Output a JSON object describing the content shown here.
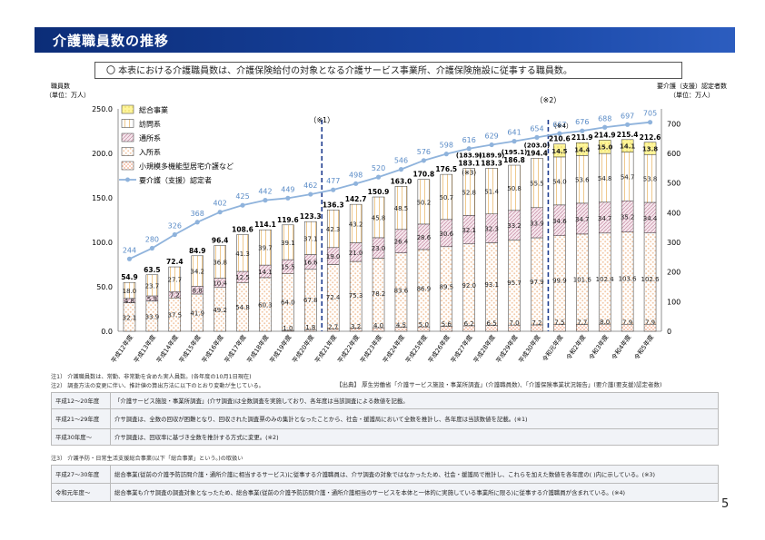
{
  "header": {
    "title": "介護職員数の推移"
  },
  "notice": "〇 本表における介護職員数は、介護保険給付の対象となる介護サービス事業所、介護保険施設に従事する職員数。",
  "chart_data": {
    "type": "bar",
    "left_axis_title": [
      "職員数",
      "（単位：万人）"
    ],
    "right_axis_title": [
      "要介護（支援）認定者数",
      "（単位：万人）"
    ],
    "left_ticks": [
      "0.0",
      "50.0",
      "100.0",
      "150.0",
      "200.0",
      "250.0"
    ],
    "right_ticks": [
      "0",
      "100",
      "200",
      "300",
      "400",
      "500",
      "600",
      "700"
    ],
    "ylim": [
      0,
      250
    ],
    "y2lim": [
      0,
      750
    ],
    "categories": [
      "平成12年度",
      "平成13年度",
      "平成14年度",
      "平成15年度",
      "平成16年度",
      "平成17年度",
      "平成18年度",
      "平成19年度",
      "平成20年度",
      "平成21年度",
      "平成22年度",
      "平成23年度",
      "平成24年度",
      "平成25年度",
      "平成26年度",
      "平成27年度",
      "平成28年度",
      "平成29年度",
      "平成30年度",
      "令和元年度",
      "令和2年度",
      "令和3年度",
      "令和4年度",
      "令和5年度"
    ],
    "legend": [
      "総合事業",
      "訪問系",
      "通所系",
      "入所系",
      "小規模多機能型居宅介護など",
      "要介護（支援）認定者"
    ],
    "series": [
      {
        "name": "小規模多機能型居宅介護など",
        "key": "small",
        "values": [
          0,
          0,
          0,
          0,
          0,
          0,
          0,
          1.0,
          1.8,
          2.7,
          3.2,
          4.0,
          4.5,
          5.0,
          5.6,
          6.2,
          6.5,
          7.0,
          7.2,
          7.5,
          7.7,
          8.0,
          7.9,
          7.9
        ],
        "labels": [
          "",
          "",
          "",
          "",
          "",
          "",
          "",
          "1.0",
          "1.8",
          "2.7",
          "3.2",
          "4.0",
          "4.5",
          "5.0",
          "5.6",
          "6.2",
          "6.5",
          "7.0",
          "7.2",
          "7.5",
          "7.7",
          "8.0",
          "7.9",
          "7.9"
        ]
      },
      {
        "name": "入所系",
        "key": "nyusho",
        "values": [
          32.1,
          33.9,
          37.5,
          41.9,
          49.2,
          54.8,
          60.3,
          64.0,
          67.8,
          72.4,
          75.3,
          78.2,
          83.6,
          86.9,
          89.5,
          92.0,
          93.1,
          95.7,
          97.9,
          99.9,
          101.6,
          102.4,
          103.6,
          102.6
        ],
        "labels": [
          "32.1",
          "33.9",
          "37.5",
          "41.9",
          "49.2",
          "54.8",
          "60.3",
          "64.0",
          "67.8",
          "72.4",
          "75.3",
          "78.2",
          "83.6",
          "86.9",
          "89.5",
          "92.0",
          "93.1",
          "95.7",
          "97.9",
          "99.9",
          "101.6",
          "102.4",
          "103.6",
          "102.6"
        ]
      },
      {
        "name": "通所系",
        "key": "tsusho",
        "values": [
          4.8,
          5.9,
          7.2,
          8.8,
          10.4,
          12.5,
          14.1,
          15.5,
          16.6,
          19.0,
          21.0,
          23.0,
          26.4,
          28.6,
          30.6,
          32.1,
          32.3,
          33.2,
          33.9,
          34.6,
          34.7,
          34.7,
          35.2,
          34.4
        ],
        "labels": [
          "4.8",
          "5.9",
          "7.2",
          "8.8",
          "10.4",
          "12.5",
          "14.1",
          "15.5",
          "16.6",
          "19.0",
          "21.0",
          "23.0",
          "26.4",
          "28.6",
          "30.6",
          "32.1",
          "32.3",
          "33.2",
          "33.9",
          "34.6",
          "34.7",
          "34.7",
          "35.2",
          "34.4"
        ]
      },
      {
        "name": "訪問系",
        "key": "homon",
        "values": [
          18.0,
          23.7,
          27.7,
          34.2,
          36.8,
          41.3,
          39.7,
          39.1,
          37.1,
          42.3,
          43.2,
          45.8,
          48.5,
          50.2,
          50.7,
          52.8,
          51.4,
          50.8,
          55.5,
          54.0,
          53.6,
          54.8,
          54.7,
          53.8
        ],
        "labels": [
          "18.0",
          "23.7",
          "27.7",
          "34.2",
          "36.8",
          "41.3",
          "39.7",
          "39.1",
          "37.1",
          "42.3",
          "43.2",
          "45.8",
          "48.5",
          "50.2",
          "50.7",
          "52.8",
          "51.4",
          "50.8",
          "55.5",
          "54.0",
          "53.6",
          "54.8",
          "54.7",
          "53.8"
        ]
      },
      {
        "name": "総合事業",
        "key": "sogo",
        "values": [
          0,
          0,
          0,
          0,
          0,
          0,
          0,
          0,
          0,
          0,
          0,
          0,
          0,
          0,
          0,
          0,
          0,
          0,
          0,
          14.5,
          14.4,
          15.0,
          14.1,
          13.8
        ],
        "labels": [
          "",
          "",
          "",
          "",
          "",
          "",
          "",
          "",
          "",
          "",
          "",
          "",
          "",
          "",
          "",
          "",
          "",
          "",
          "",
          "14.5",
          "14.4",
          "15.0",
          "14.1",
          "13.8"
        ]
      }
    ],
    "totals": [
      "54.9",
      "63.5",
      "72.4",
      "84.9",
      "96.4",
      "108.6",
      "114.1",
      "119.6",
      "123.3",
      "136.3",
      "142.7",
      "150.9",
      "163.0",
      "170.8",
      "176.5",
      "183.1",
      "183.3",
      "186.8",
      "194.4",
      "210.6",
      "211.9",
      "214.9",
      "215.4",
      "212.6"
    ],
    "alt_totals": {
      "15": "(183.9)",
      "16": "(189.9)",
      "17": "(195.1)",
      "18": "(203.0)"
    },
    "certified": [
      244,
      280,
      326,
      368,
      402,
      425,
      442,
      449,
      462,
      477,
      498,
      520,
      546,
      576,
      598,
      616,
      629,
      641,
      654,
      667,
      676,
      688,
      697,
      705
    ],
    "annotations": [
      "（※1）",
      "（※2）",
      "（※3）",
      "（※4）"
    ],
    "divider_after_index": [
      8,
      18
    ],
    "colors": {
      "small": "#f3a98a",
      "nyusho": "#f3c9a7",
      "tsusho": "#d7a6b9",
      "homon": "#f2ddb0",
      "sogo": "#fff07a",
      "line": "#8fb3dc",
      "divider": "#1f3d8f"
    }
  },
  "notes": {
    "n1": "注1） 介護職員数は、常勤、非常勤を含めた実人員数。(各年度の10月1日現在)",
    "n2": "注2） 調査方法の変更に伴い、推計値の算出方法に以下のとおり変動が生じている。",
    "source": "【出典】 厚生労働省「介護サービス施設・事業所調査」(介護職員数)、「介護保険事業状況報告」(要介護(要支援)認定者数)",
    "table1": [
      {
        "k": "平成12～20年度",
        "v": "「介護サービス施設・事業所調査」(介サ調査)は全数調査を実施しており、各年度は当該調査による数値を記載。"
      },
      {
        "k": "平成21～29年度",
        "v": "介サ調査は、全数の回収が困難となり、回収された調査票のみの集計となったことから、社会・援護局において全数を推計し、各年度は当該数値を記載。(※1)"
      },
      {
        "k": "平成30年度～",
        "v": "介サ調査は、回収率に基づき全数を推計する方式に変更。(※2)"
      }
    ],
    "n3": "注3） 介護予防・日常生活支援総合事業(以下「総合事業」という。)の取扱い",
    "table2": [
      {
        "k": "平成27～30年度",
        "v": "総合事業(従前の介護予防訪問介護・通所介護に相当するサービス)に従事する介護職員は、介サ調査の対象ではなかったため、社会・援護局で推計し、これらを加えた数値を各年度の( )内に示している。(※3)"
      },
      {
        "k": "令和元年度～",
        "v": "総合事業も介サ調査の調査対象となったため、総合事業(従前の介護予防訪問介護・通所介護相当のサービスを本体と一体的に実施している事業所に限る)に従事する介護職員が含まれている。(※4)"
      }
    ]
  },
  "page_number": "5"
}
